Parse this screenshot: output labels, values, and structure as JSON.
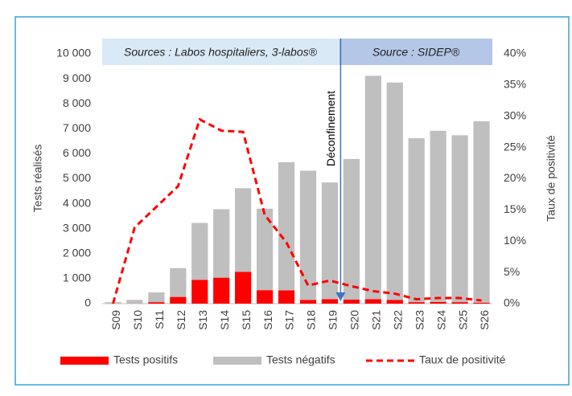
{
  "chart_data": {
    "type": "bar",
    "stacked": true,
    "categories": [
      "S09",
      "S10",
      "S11",
      "S12",
      "S13",
      "S14",
      "S15",
      "S16",
      "S17",
      "S18",
      "S19",
      "S20",
      "S21",
      "S22",
      "S23",
      "S24",
      "S25",
      "S26"
    ],
    "series": [
      {
        "name": "Tests positifs",
        "color": "#ff0000",
        "values": [
          0,
          5,
          60,
          270,
          950,
          1040,
          1270,
          540,
          530,
          150,
          180,
          160,
          180,
          150,
          60,
          70,
          60,
          40
        ]
      },
      {
        "name": "Tests négatifs",
        "color": "#bfbfbf",
        "values": [
          60,
          145,
          390,
          1150,
          2280,
          2740,
          3350,
          3260,
          5130,
          5170,
          4670,
          5630,
          8940,
          8700,
          6560,
          6850,
          6680,
          7260
        ]
      },
      {
        "name": "Taux de positivité",
        "type": "line",
        "axis": "y2",
        "color": "#ff0000",
        "dashed": true,
        "values": [
          0,
          12.2,
          15.5,
          18.8,
          29.5,
          27.7,
          27.5,
          14.2,
          9.8,
          2.9,
          3.7,
          2.8,
          2.0,
          1.6,
          0.7,
          0.9,
          0.9,
          0.5
        ]
      }
    ],
    "y_label": "Tests réalisés",
    "y2_label": "Taux de positivité",
    "ylim": [
      0,
      10000
    ],
    "yticks": [
      0,
      {
        "value": 1000,
        "label": "1 000"
      },
      {
        "value": 2000,
        "label": "2 000"
      },
      {
        "value": 3000,
        "label": "3 000"
      },
      {
        "value": 4000,
        "label": "4 000"
      },
      {
        "value": 5000,
        "label": "5 000"
      },
      {
        "value": 6000,
        "label": "6 000"
      },
      {
        "value": 7000,
        "label": "7 000"
      },
      {
        "value": 8000,
        "label": "8 000"
      },
      {
        "value": 9000,
        "label": "9 000"
      },
      {
        "value": 10000,
        "label": "10 000"
      }
    ],
    "y2lim": [
      0,
      40
    ],
    "y2ticks": [
      {
        "value": 0,
        "label": "0%"
      },
      {
        "value": 5,
        "label": "5%"
      },
      {
        "value": 10,
        "label": "10%"
      },
      {
        "value": 15,
        "label": "15%"
      },
      {
        "value": 20,
        "label": "20%"
      },
      {
        "value": 25,
        "label": "25%"
      },
      {
        "value": 30,
        "label": "30%"
      },
      {
        "value": 35,
        "label": "35%"
      },
      {
        "value": 40,
        "label": "40%"
      }
    ],
    "sources": [
      "Sources : Labos hospitaliers, 3-labos®",
      "Source : SIDEP®"
    ],
    "event_label": "Déconfinement",
    "legend": "bottom"
  }
}
